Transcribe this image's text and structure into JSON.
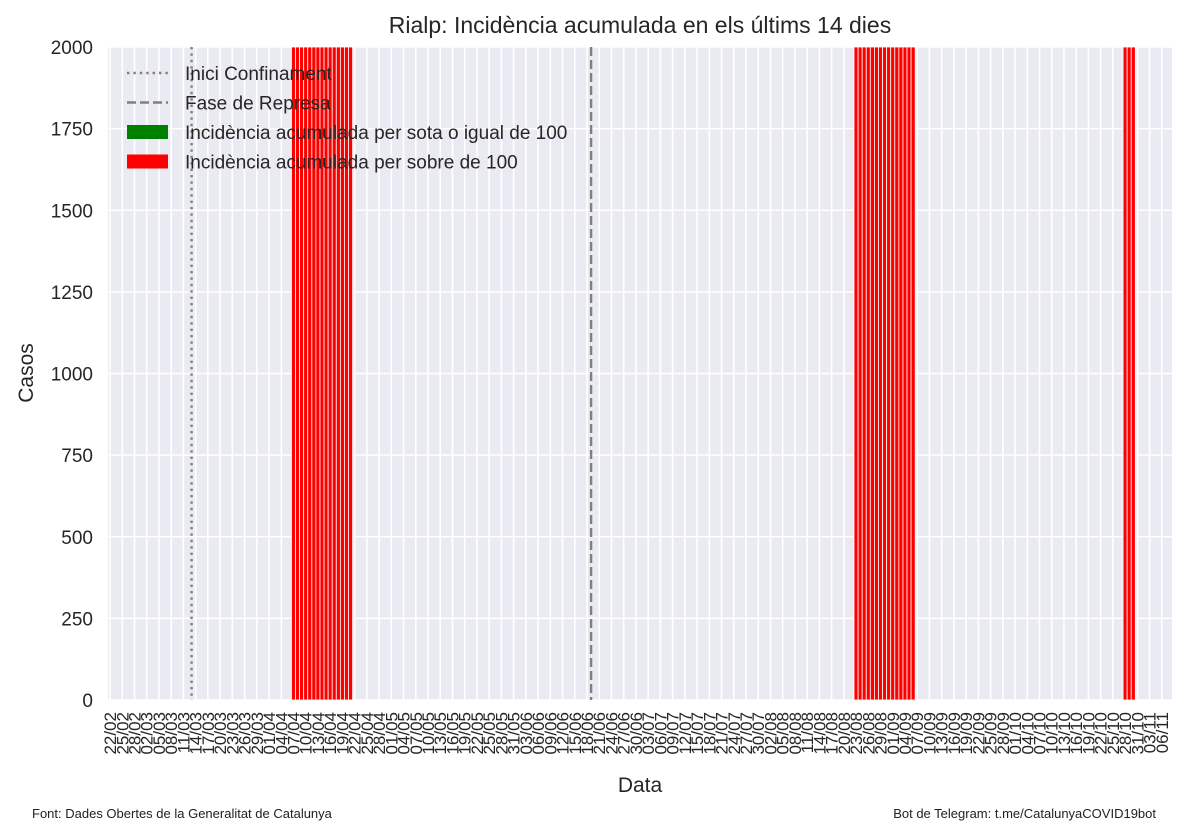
{
  "chart_data": {
    "type": "bar",
    "title": "Rialp: Incidència acumulada en els últims 14 dies",
    "xlabel": "Data",
    "ylabel": "Casos",
    "ylim": [
      0,
      2000
    ],
    "yticks": [
      0,
      250,
      500,
      750,
      1000,
      1250,
      1500,
      1750,
      2000
    ],
    "grid": true,
    "legend_position": "top-left",
    "start_date": "22/02",
    "end_date": "08/11",
    "tick_labels": [
      "22/02",
      "25/02",
      "28/02",
      "02/03",
      "05/03",
      "08/03",
      "11/03",
      "14/03",
      "17/03",
      "20/03",
      "23/03",
      "26/03",
      "29/03",
      "01/04",
      "04/04",
      "07/04",
      "10/04",
      "13/04",
      "16/04",
      "19/04",
      "22/04",
      "25/04",
      "28/04",
      "01/05",
      "04/05",
      "07/05",
      "10/05",
      "13/05",
      "16/05",
      "19/05",
      "22/05",
      "25/05",
      "28/05",
      "31/05",
      "03/06",
      "06/06",
      "09/06",
      "12/06",
      "15/06",
      "18/06",
      "21/06",
      "24/06",
      "27/06",
      "30/06",
      "03/07",
      "06/07",
      "09/07",
      "12/07",
      "15/07",
      "18/07",
      "21/07",
      "24/07",
      "27/07",
      "30/07",
      "02/08",
      "05/08",
      "08/08",
      "11/08",
      "14/08",
      "17/08",
      "20/08",
      "23/08",
      "26/08",
      "29/08",
      "01/09",
      "04/09",
      "07/09",
      "10/09",
      "13/09",
      "16/09",
      "19/09",
      "22/09",
      "25/09",
      "28/09",
      "01/10",
      "04/10",
      "07/10",
      "10/10",
      "13/10",
      "16/10",
      "19/10",
      "22/10",
      "25/10",
      "28/10",
      "31/10",
      "03/11",
      "06/11"
    ],
    "vlines": [
      {
        "name": "Inici Confinament",
        "date": "13/03",
        "style": "dotted",
        "color": "#808080"
      },
      {
        "name": "Fase de Represa",
        "date": "19/06",
        "style": "dashed",
        "color": "#808080"
      }
    ],
    "series": [
      {
        "name": "Incidència acumulada per sota o igual de 100",
        "color": "#008000",
        "ranges": []
      },
      {
        "name": "Incidència acumulada per sobre de 100",
        "color": "#ff0000",
        "ranges": [
          {
            "from": "07/04",
            "to": "21/04",
            "value": 2000
          },
          {
            "from": "23/08",
            "to": "06/09",
            "value": 2000
          },
          {
            "from": "28/10",
            "to": "30/10",
            "value": 2000
          }
        ]
      }
    ],
    "colors": {
      "plot_background": "#eaeaf2",
      "grid": "#ffffff",
      "bar_edge": "#ffffff"
    }
  },
  "footer": {
    "source": "Font: Dades Obertes de la Generalitat de Catalunya",
    "bot": "Bot de Telegram: t.me/CatalunyaCOVID19bot"
  }
}
